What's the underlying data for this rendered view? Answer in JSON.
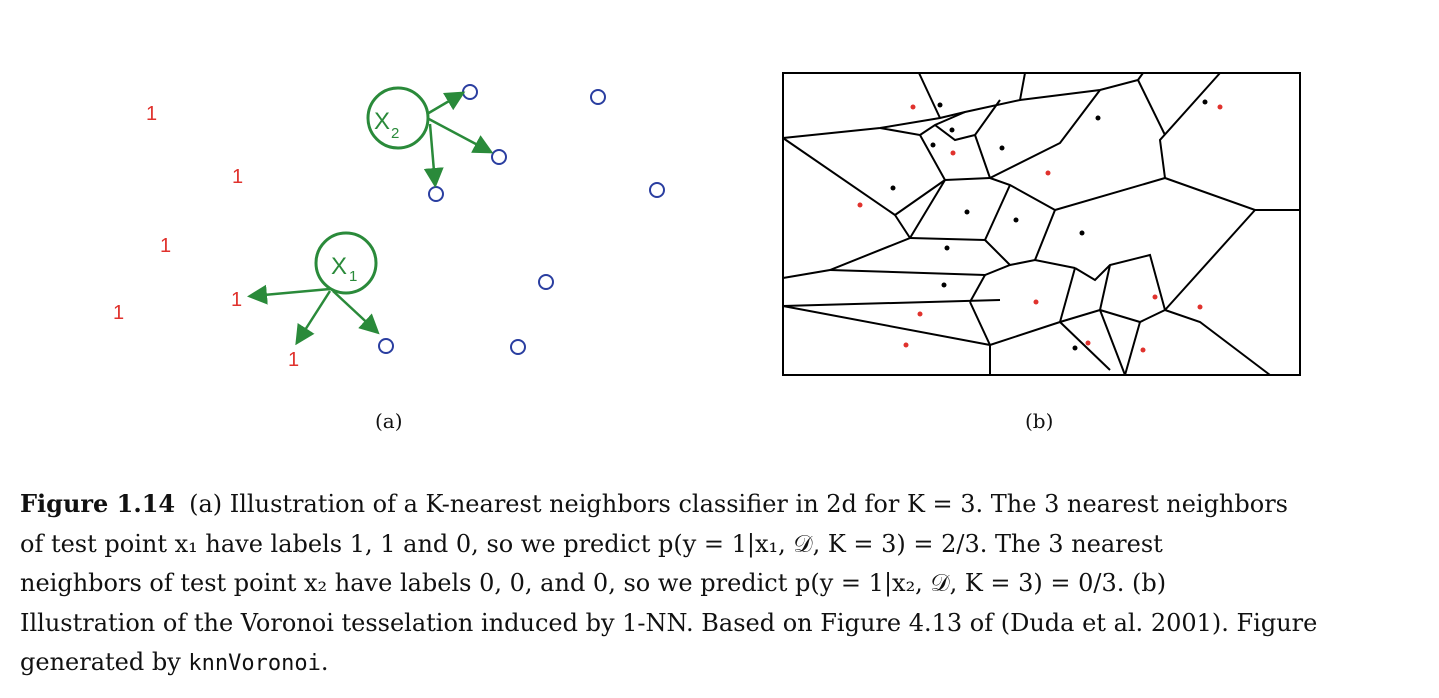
{
  "panel_a": {
    "label": "(a)",
    "class1_symbol": "1",
    "class0_symbol": "O",
    "test_points": [
      {
        "name": "X",
        "subscript": "2"
      },
      {
        "name": "X",
        "subscript": "1"
      }
    ],
    "colors": {
      "class1": "#e0322d",
      "class0": "#2a3ea0",
      "test": "#2a8a3a"
    }
  },
  "panel_b": {
    "label": "(b)",
    "colors": {
      "red_points": "#e0322d",
      "black_points": "#000000",
      "edges": "#000000"
    }
  },
  "caption": {
    "figure_label": "Figure 1.14",
    "line1": "(a) Illustration of a K-nearest neighbors classifier in 2d for K = 3. The 3 nearest neighbors",
    "line2": "of test point x₁ have labels 1, 1 and 0, so we predict p(y = 1|x₁, 𝒟, K = 3) = 2/3. The 3 nearest",
    "line3": "neighbors of test point x₂ have labels 0, 0, and 0, so we predict p(y = 1|x₂, 𝒟, K = 3) = 0/3. (b)",
    "line4": "Illustration of the Voronoi tesselation induced by 1-NN. Based on Figure 4.13 of (Duda et al. 2001). Figure",
    "line5_prefix": "generated by",
    "code_name": "knnVoronoi",
    "line5_suffix": "."
  }
}
